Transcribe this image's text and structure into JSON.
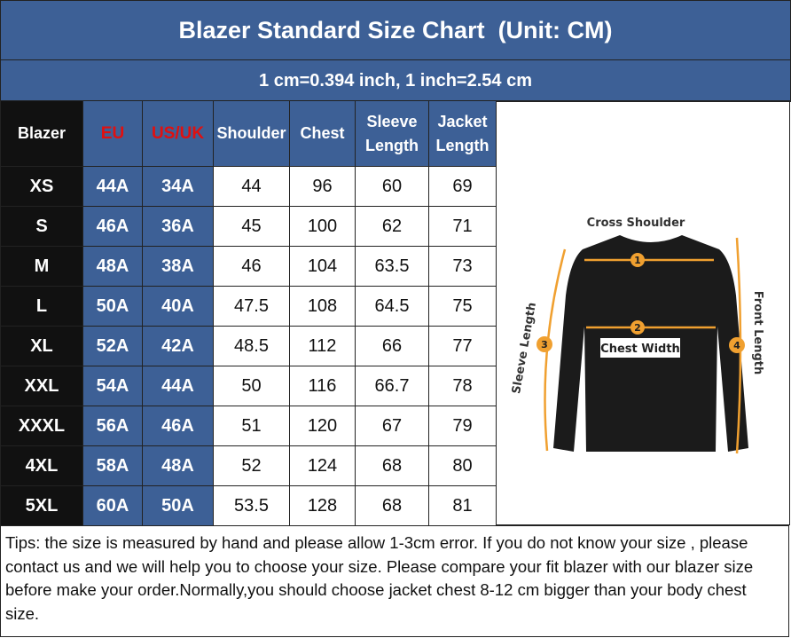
{
  "header": {
    "title": "Blazer Standard Size Chart  (Unit: CM)",
    "subtitle": "1 cm=0.394 inch, 1 inch=2.54 cm"
  },
  "table": {
    "columns": [
      "Blazer",
      "EU",
      "US/UK",
      "Shoulder",
      "Chest",
      "Sleeve Length",
      "Jacket Length"
    ],
    "rows": [
      [
        "XS",
        "44A",
        "34A",
        44,
        96,
        60,
        69
      ],
      [
        "S",
        "46A",
        "36A",
        45,
        100,
        62,
        71
      ],
      [
        "M",
        "48A",
        "38A",
        46,
        104,
        63.5,
        73
      ],
      [
        "L",
        "50A",
        "40A",
        47.5,
        108,
        64.5,
        75
      ],
      [
        "XL",
        "52A",
        "42A",
        48.5,
        112,
        66,
        77
      ],
      [
        "XXL",
        "54A",
        "44A",
        50,
        116,
        66.7,
        78
      ],
      [
        "XXXL",
        "56A",
        "46A",
        51,
        120,
        67,
        79
      ],
      [
        "4XL",
        "58A",
        "48A",
        52,
        124,
        68,
        80
      ],
      [
        "5XL",
        "60A",
        "50A",
        53.5,
        128,
        68,
        81
      ]
    ]
  },
  "diagram": {
    "labels": [
      "Cross Shoulder",
      "Chest Width",
      "Sleeve Length",
      "Front Length"
    ],
    "markers": [
      "1",
      "2",
      "3",
      "4"
    ]
  },
  "tips": "Tips: the size is measured by hand and please allow 1-3cm error. If you do not know your size , please contact us and we will help you to choose your size. Please compare your fit blazer with our blazer size before make your order.Normally,you should choose jacket chest 8-12 cm bigger than your body chest size."
}
